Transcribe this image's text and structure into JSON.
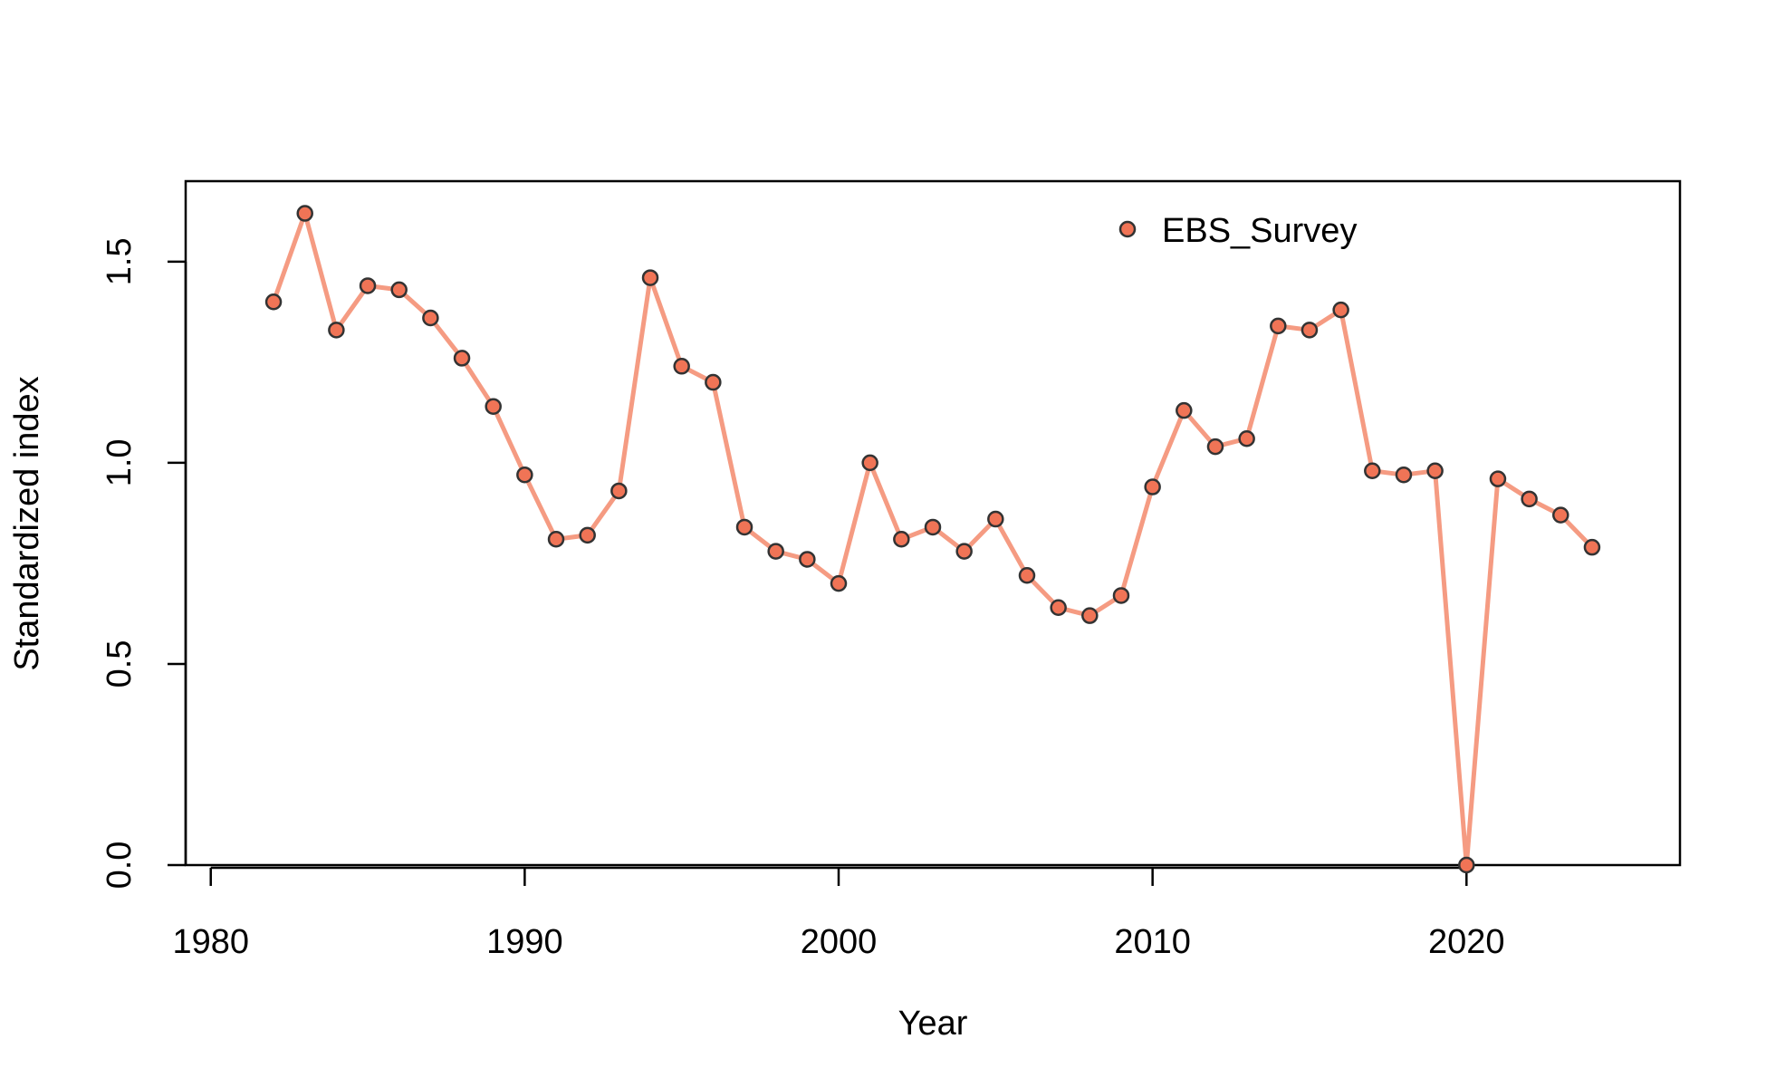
{
  "chart_data": {
    "type": "line",
    "title": "",
    "xlabel": "Year",
    "ylabel": "Standardized index",
    "xlim": [
      1979.2,
      2026.8
    ],
    "ylim": [
      0.0,
      1.7
    ],
    "xticks": [
      1980,
      1990,
      2000,
      2010,
      2020
    ],
    "xtick_labels": [
      "1980",
      "1990",
      "2000",
      "2010",
      "2020"
    ],
    "yticks": [
      0.0,
      0.5,
      1.0,
      1.5
    ],
    "ytick_labels": [
      "0.0",
      "0.5",
      "1.0",
      "1.5"
    ],
    "grid": false,
    "legend_position": "top-right",
    "colors": {
      "line": "#F59B82",
      "marker_fill": "#F07456",
      "marker_edge": "#333333",
      "axis": "#000000"
    },
    "series": [
      {
        "name": "EBS_Survey",
        "x": [
          1982,
          1983,
          1984,
          1985,
          1986,
          1987,
          1988,
          1989,
          1990,
          1991,
          1992,
          1993,
          1994,
          1995,
          1996,
          1997,
          1998,
          1999,
          2000,
          2001,
          2002,
          2003,
          2004,
          2005,
          2006,
          2007,
          2008,
          2009,
          2010,
          2011,
          2012,
          2013,
          2014,
          2015,
          2016,
          2017,
          2018,
          2019,
          2020,
          2021,
          2022,
          2023,
          2024
        ],
        "values": [
          1.4,
          1.62,
          1.33,
          1.44,
          1.43,
          1.36,
          1.26,
          1.14,
          0.97,
          0.81,
          0.82,
          0.93,
          1.46,
          1.24,
          1.2,
          0.84,
          0.78,
          0.76,
          0.7,
          1.0,
          0.81,
          0.84,
          0.78,
          0.86,
          0.72,
          0.64,
          0.62,
          0.67,
          0.94,
          1.13,
          1.04,
          1.06,
          1.34,
          1.33,
          1.38,
          0.98,
          0.97,
          0.98,
          0.0,
          0.96,
          0.91,
          0.87,
          0.79
        ]
      }
    ]
  }
}
